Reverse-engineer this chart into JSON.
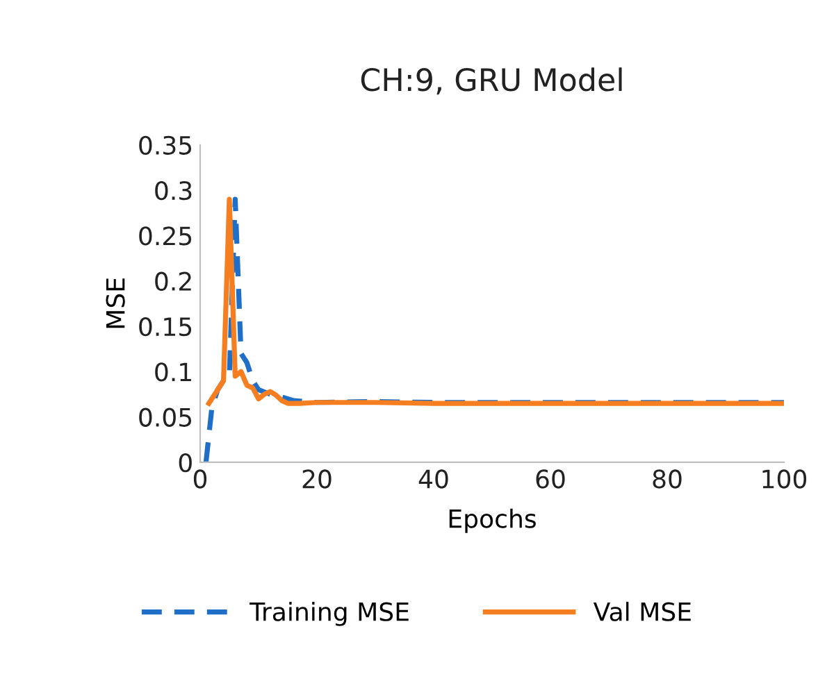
{
  "chart_data": {
    "type": "line",
    "title": "CH:9, GRU Model",
    "xlabel": "Epochs",
    "ylabel": "MSE",
    "xlim": [
      0,
      100
    ],
    "xticks": [
      0,
      20,
      40,
      60,
      80,
      100
    ],
    "ylim": [
      0,
      0.35
    ],
    "yticks": [
      0,
      0.05,
      0.1,
      0.15,
      0.2,
      0.25,
      0.3,
      0.35
    ],
    "grid": false,
    "legend": "bottom",
    "marker": "none",
    "series": [
      {
        "name": "Training MSE",
        "color": "#1f6fc9",
        "line_style": "dashed",
        "x": [
          1,
          2,
          3,
          4,
          5,
          6,
          7,
          8,
          9,
          10,
          12,
          14,
          16,
          20,
          30,
          40,
          50,
          60,
          70,
          80,
          90,
          100
        ],
        "values": [
          0,
          0.06,
          0.08,
          0.09,
          0.095,
          0.29,
          0.12,
          0.11,
          0.09,
          0.08,
          0.075,
          0.072,
          0.068,
          0.066,
          0.067,
          0.066,
          0.066,
          0.066,
          0.066,
          0.066,
          0.066,
          0.066
        ]
      },
      {
        "name": "Val MSE",
        "color": "#f57f20",
        "line_style": "solid",
        "x": [
          1.5,
          2,
          3,
          4,
          5,
          6,
          7,
          8,
          9,
          10,
          11,
          12,
          13,
          14,
          15,
          17,
          20,
          30,
          40,
          50,
          60,
          70,
          80,
          90,
          100
        ],
        "values": [
          0.065,
          0.07,
          0.08,
          0.09,
          0.29,
          0.095,
          0.1,
          0.085,
          0.082,
          0.07,
          0.075,
          0.078,
          0.074,
          0.068,
          0.065,
          0.065,
          0.066,
          0.066,
          0.065,
          0.065,
          0.065,
          0.065,
          0.065,
          0.065,
          0.065
        ]
      }
    ]
  }
}
